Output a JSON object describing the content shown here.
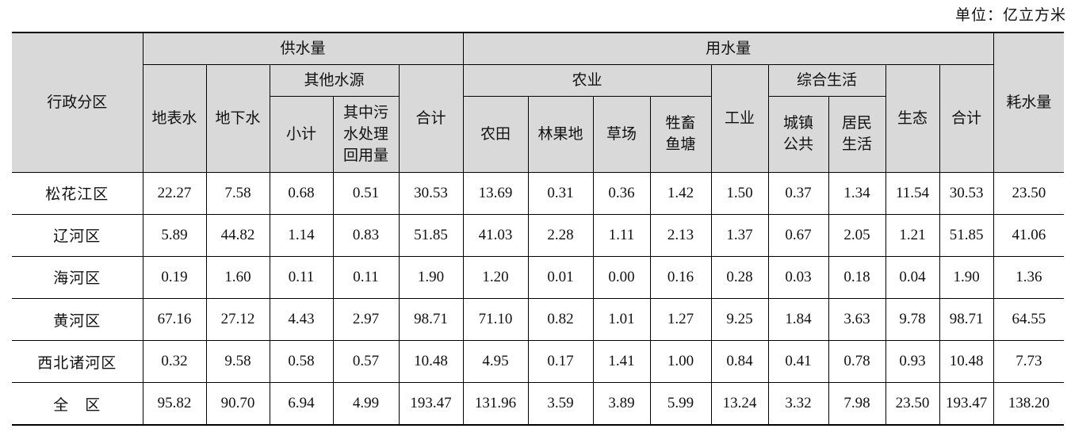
{
  "unit_label": "单位：亿立方米",
  "headers": {
    "region": "行政分区",
    "supply": "供水量",
    "use": "用水量",
    "consumption": "耗水量",
    "surface": "地表水",
    "ground": "地下水",
    "other_sources": "其他水源",
    "subtotal": "小计",
    "reuse": [
      "其中污",
      "水处理",
      "回用量"
    ],
    "supply_total": "合计",
    "agriculture": "农业",
    "farmland": "农田",
    "orchard": "林果地",
    "grassland": "草场",
    "livestock": [
      "牲畜",
      "鱼塘"
    ],
    "industry": "工业",
    "domestic": "综合生活",
    "urban_public": [
      "城镇",
      "公共"
    ],
    "residential": [
      "居民",
      "生活"
    ],
    "ecology": "生态",
    "use_total": "合计"
  },
  "rows": [
    {
      "region": "松花江区",
      "values": [
        "22.27",
        "7.58",
        "0.68",
        "0.51",
        "30.53",
        "13.69",
        "0.31",
        "0.36",
        "1.42",
        "1.50",
        "0.37",
        "1.34",
        "11.54",
        "30.53",
        "23.50"
      ]
    },
    {
      "region": "辽河区",
      "values": [
        "5.89",
        "44.82",
        "1.14",
        "0.83",
        "51.85",
        "41.03",
        "2.28",
        "1.11",
        "2.13",
        "1.37",
        "0.67",
        "2.05",
        "1.21",
        "51.85",
        "41.06"
      ]
    },
    {
      "region": "海河区",
      "values": [
        "0.19",
        "1.60",
        "0.11",
        "0.11",
        "1.90",
        "1.20",
        "0.01",
        "0.00",
        "0.16",
        "0.28",
        "0.03",
        "0.18",
        "0.04",
        "1.90",
        "1.36"
      ]
    },
    {
      "region": "黄河区",
      "values": [
        "67.16",
        "27.12",
        "4.43",
        "2.97",
        "98.71",
        "71.10",
        "0.82",
        "1.01",
        "1.27",
        "9.25",
        "1.84",
        "3.63",
        "9.78",
        "98.71",
        "64.55"
      ]
    },
    {
      "region": "西北诸河区",
      "values": [
        "0.32",
        "9.58",
        "0.58",
        "0.57",
        "10.48",
        "4.95",
        "0.17",
        "1.41",
        "1.00",
        "0.84",
        "0.41",
        "0.78",
        "0.93",
        "10.48",
        "7.73"
      ]
    },
    {
      "region": "全　区",
      "values": [
        "95.82",
        "90.70",
        "6.94",
        "4.99",
        "193.47",
        "131.96",
        "3.59",
        "3.89",
        "5.99",
        "13.24",
        "3.32",
        "7.98",
        "23.50",
        "193.47",
        "138.20"
      ]
    }
  ]
}
